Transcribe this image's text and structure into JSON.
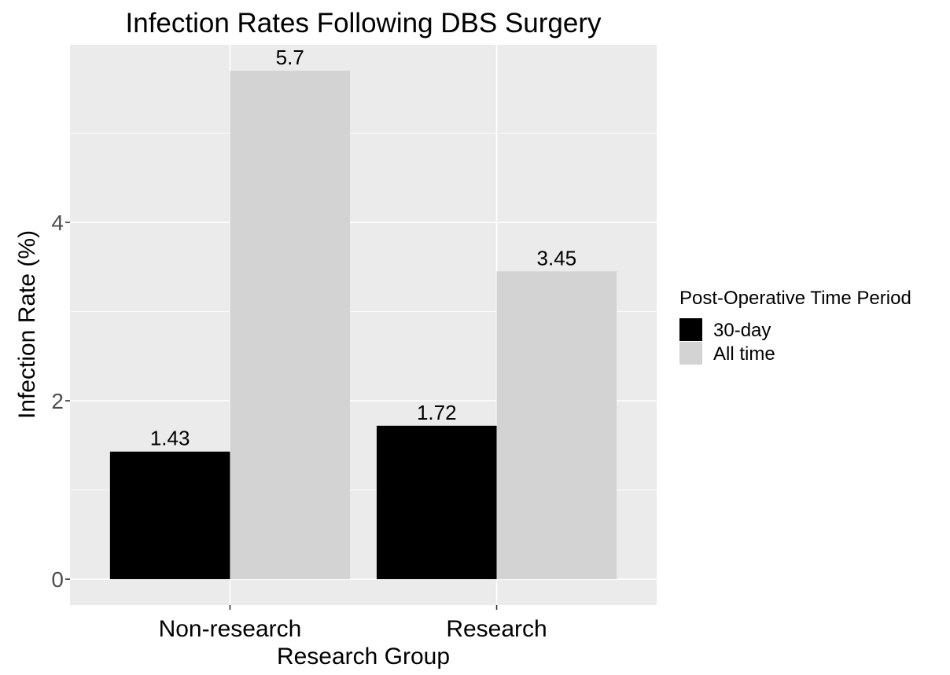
{
  "chart_data": {
    "type": "bar",
    "title": "Infection Rates Following DBS Surgery",
    "xlabel": "Research Group",
    "ylabel": "Infection Rate (%)",
    "categories": [
      "Non-research",
      "Research"
    ],
    "series": [
      {
        "name": "30-day",
        "values": [
          1.43,
          1.72
        ],
        "labels": [
          "1.43",
          "1.72"
        ],
        "color": "#000000"
      },
      {
        "name": "All time",
        "values": [
          5.7,
          3.45
        ],
        "labels": [
          "5.7",
          "3.45"
        ],
        "color": "#d3d3d3"
      }
    ],
    "yticks": [
      0,
      2,
      4
    ],
    "ytick_labels": [
      "0",
      "2",
      "4"
    ],
    "ylim": [
      -0.29,
      5.99
    ],
    "grid": true,
    "legend": {
      "title": "Post-Operative Time Period",
      "position": "right"
    },
    "panel_color": "#ebebeb",
    "grid_color": "#ffffff"
  }
}
